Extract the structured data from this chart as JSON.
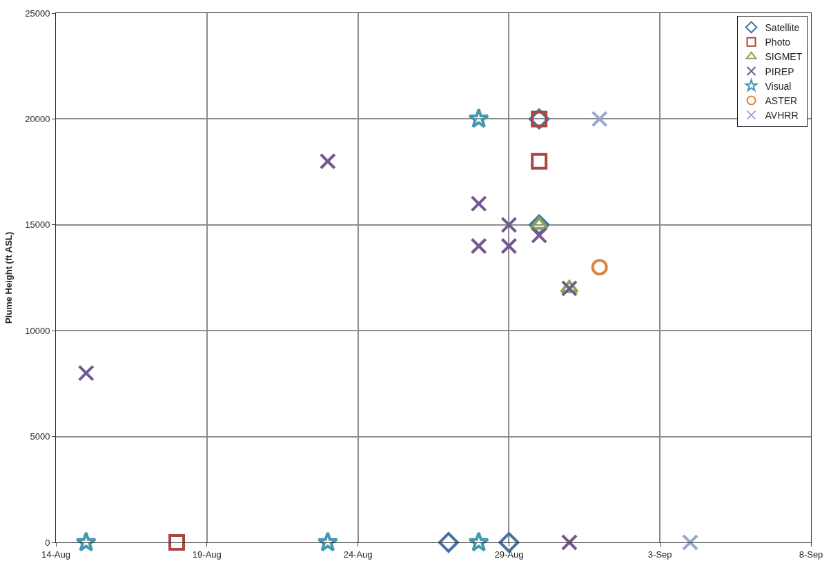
{
  "chart_data": {
    "type": "scatter",
    "ylabel": "Plume Height (ft ASL)",
    "xlim": [
      "--08-14",
      "--09-08"
    ],
    "xticks": [
      {
        "value": "--08-14",
        "label": "14-Aug"
      },
      {
        "value": "--08-19",
        "label": "19-Aug"
      },
      {
        "value": "--08-24",
        "label": "24-Aug"
      },
      {
        "value": "--08-29",
        "label": "29-Aug"
      },
      {
        "value": "--09-03",
        "label": "3-Sep"
      },
      {
        "value": "--09-08",
        "label": "8-Sep"
      }
    ],
    "ylim": [
      0,
      25000
    ],
    "yticks": [
      0,
      5000,
      10000,
      15000,
      20000,
      25000
    ],
    "grid": true,
    "legend": "top right",
    "series": [
      {
        "name": "Satellite",
        "color": "#4572a7",
        "marker": "diamond",
        "x": [
          "--08-27",
          "--08-29",
          "--08-30",
          "--08-30"
        ],
        "values": [
          0,
          0,
          20000,
          15000
        ]
      },
      {
        "name": "Photo",
        "color": "#aa4643",
        "marker": "square",
        "x": [
          "--08-18",
          "--08-30",
          "--08-30"
        ],
        "values": [
          0,
          20000,
          18000
        ]
      },
      {
        "name": "SIGMET",
        "color": "#89a54e",
        "marker": "triangle",
        "x": [
          "--08-30",
          "--08-31"
        ],
        "values": [
          15000,
          12000
        ]
      },
      {
        "name": "PIREP",
        "color": "#71588f",
        "marker": "cross",
        "x": [
          "--08-15",
          "--08-23",
          "--08-28",
          "--08-28",
          "--08-29",
          "--08-29",
          "--08-30",
          "--08-31",
          "--08-31"
        ],
        "values": [
          8000,
          18000,
          16000,
          14000,
          15000,
          14000,
          14500,
          12000,
          0
        ]
      },
      {
        "name": "Visual",
        "color": "#4198af",
        "marker": "star",
        "x": [
          "--08-15",
          "--08-23",
          "--08-28",
          "--08-28"
        ],
        "values": [
          0,
          0,
          0,
          20000
        ]
      },
      {
        "name": "ASTER",
        "color": "#db843d",
        "marker": "circle",
        "x": [
          "--09-01"
        ],
        "values": [
          13000
        ]
      },
      {
        "name": "AVHRR",
        "color": "#93a9cf",
        "marker": "cross",
        "x": [
          "--09-01",
          "--09-04"
        ],
        "values": [
          20000,
          0
        ]
      }
    ]
  }
}
